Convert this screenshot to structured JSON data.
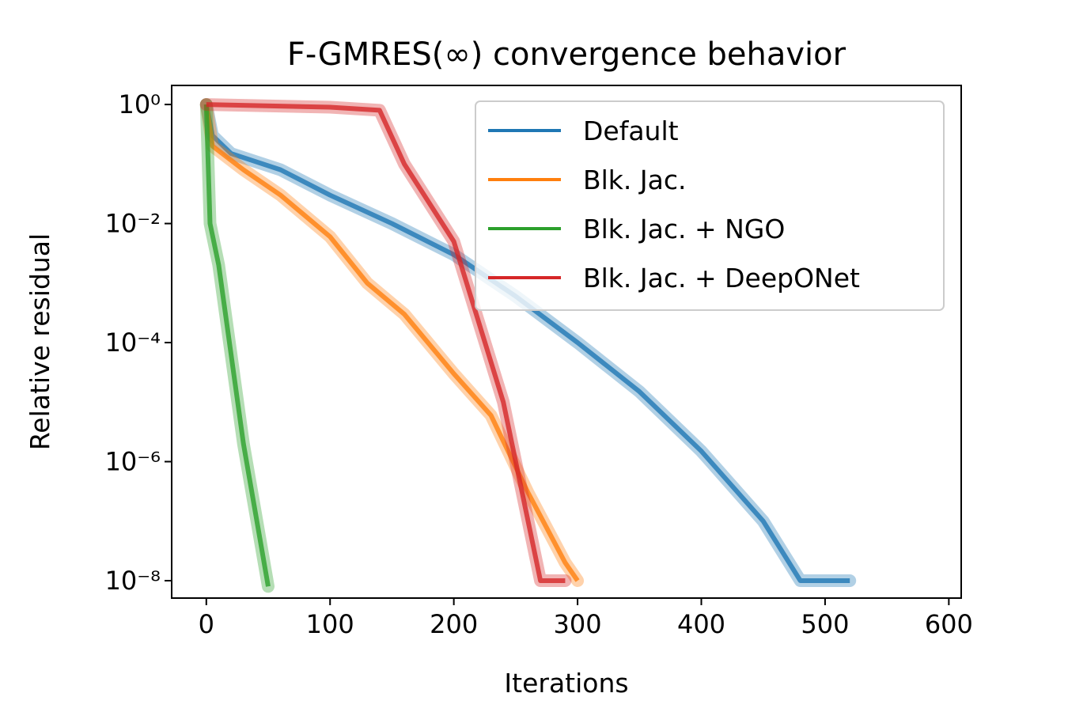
{
  "chart_data": {
    "type": "line",
    "title": "F-GMRES(∞) convergence behavior",
    "x_label": "Iterations",
    "y_label": "Relative residual",
    "log_y": true,
    "legend": "upper right",
    "xlim": [
      -28,
      610
    ],
    "ylim": [
      5.1e-09,
      2.09
    ],
    "xticks": [
      0,
      100,
      200,
      300,
      400,
      500,
      600
    ],
    "yticks": [
      {
        "value": 1,
        "label": "10⁰"
      },
      {
        "value": 0.01,
        "label": "10⁻²"
      },
      {
        "value": 0.0001,
        "label": "10⁻⁴"
      },
      {
        "value": 1e-06,
        "label": "10⁻⁶"
      },
      {
        "value": 1e-08,
        "label": "10⁻⁸"
      }
    ],
    "series": [
      {
        "name": "Default",
        "color": "#1f77b4",
        "x": [
          0,
          5,
          20,
          60,
          100,
          150,
          200,
          250,
          300,
          350,
          400,
          450,
          480,
          520
        ],
        "values": [
          1,
          0.3,
          0.15,
          0.08,
          0.03,
          0.01,
          0.003,
          0.0006,
          0.0001,
          1.5e-05,
          1.5e-06,
          1e-07,
          1e-08,
          1e-08
        ]
      },
      {
        "name": "Blk. Jac.",
        "color": "#ff7f0e",
        "x": [
          0,
          5,
          30,
          60,
          100,
          130,
          160,
          200,
          230,
          260,
          290,
          300
        ],
        "values": [
          1,
          0.2,
          0.08,
          0.03,
          0.006,
          0.001,
          0.0003,
          3e-05,
          6e-06,
          3e-07,
          2e-08,
          1e-08
        ]
      },
      {
        "name": "Blk. Jac. + NGO",
        "color": "#2ca02c",
        "x": [
          0,
          3,
          10,
          30,
          50
        ],
        "values": [
          1,
          0.01,
          0.002,
          2e-06,
          8e-09
        ]
      },
      {
        "name": "Blk. Jac. + DeepONet",
        "color": "#d62728",
        "x": [
          0,
          100,
          140,
          160,
          200,
          240,
          270,
          290
        ],
        "values": [
          1,
          0.9,
          0.8,
          0.1,
          0.005,
          1e-05,
          1e-08,
          1e-08
        ]
      }
    ]
  }
}
